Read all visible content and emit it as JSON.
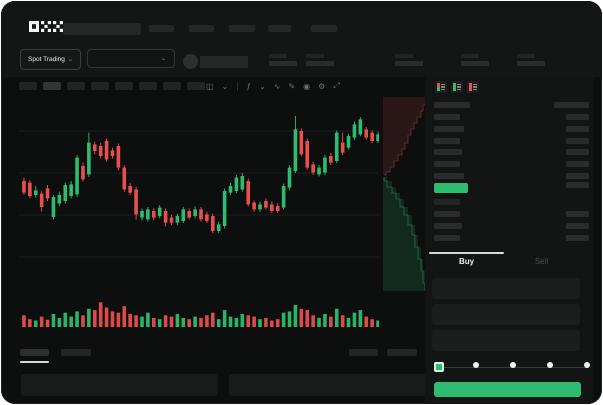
{
  "colors": {
    "green": "#2ebd70",
    "red": "#e8504b",
    "depth_ask_fill": "#2b1717",
    "depth_ask_line": "#6b3431",
    "depth_bid_fill": "#12291d",
    "depth_bid_line": "#2e6b4a",
    "grid": "#1d1e1e",
    "placeholder_bar": "#2b2c2c"
  },
  "header": {
    "logo": "OKX",
    "nav_placeholder_count": 5
  },
  "subheader": {
    "market_selector_label": "Spot Trading",
    "chevron": "⌄",
    "ticker_stat_count": 5
  },
  "chart_toolbar": {
    "interval_placeholder_count": 8,
    "icons": [
      {
        "name": "chart-type-icon",
        "glyph": "◫",
        "interactable": true
      },
      {
        "name": "chevron-down-icon",
        "glyph": "⌄",
        "interactable": true
      },
      {
        "name": "toolbar-divider",
        "glyph": "|",
        "interactable": false
      },
      {
        "name": "indicators-icon",
        "glyph": "ƒ",
        "interactable": true
      },
      {
        "name": "chevron-down-icon",
        "glyph": "⌄",
        "interactable": true
      },
      {
        "name": "compare-icon",
        "glyph": "∿",
        "interactable": true
      },
      {
        "name": "draw-icon",
        "glyph": "✎",
        "interactable": true
      },
      {
        "name": "camera-icon",
        "glyph": "◉",
        "interactable": true
      },
      {
        "name": "settings-icon",
        "glyph": "⚙",
        "interactable": true
      },
      {
        "name": "fullscreen-icon",
        "glyph": "⤢",
        "interactable": true
      }
    ]
  },
  "chart_data": {
    "type": "candlestick",
    "title": "",
    "note": "no axis labels visible; prices normalized to 0-100 scale",
    "ylim": [
      30,
      95
    ],
    "grid": true,
    "candles_ohlc": [
      [
        60,
        61.7,
        53,
        54.2
      ],
      [
        59.2,
        60.3,
        51.3,
        52.5
      ],
      [
        53,
        57.5,
        51.7,
        55.3
      ],
      [
        53.7,
        55,
        44.7,
        47
      ],
      [
        56.3,
        58,
        50,
        51.3
      ],
      [
        42,
        53,
        40.8,
        52
      ],
      [
        48.7,
        54.7,
        47.5,
        53
      ],
      [
        50,
        59.2,
        48.7,
        58
      ],
      [
        52.5,
        60,
        51.3,
        58.3
      ],
      [
        53.3,
        73,
        52,
        71.7
      ],
      [
        67.5,
        69.2,
        59.7,
        60.8
      ],
      [
        63.3,
        84.2,
        62,
        79.2
      ],
      [
        78.3,
        79.7,
        73.3,
        75
      ],
      [
        77.5,
        79,
        71.3,
        72.5
      ],
      [
        80,
        81.3,
        69.7,
        70.8
      ],
      [
        75.3,
        76.7,
        71.3,
        72.5
      ],
      [
        77.5,
        78.7,
        65.3,
        66.7
      ],
      [
        66.7,
        68,
        54.7,
        55.8
      ],
      [
        57.5,
        59,
        53,
        54.2
      ],
      [
        55.8,
        57,
        40.7,
        43.3
      ],
      [
        41.7,
        46.3,
        40.3,
        45
      ],
      [
        40.8,
        47,
        39.7,
        45.8
      ],
      [
        45,
        46.3,
        40.3,
        41.7
      ],
      [
        42.5,
        48,
        41.3,
        46.7
      ],
      [
        45,
        46.3,
        37.3,
        39.2
      ],
      [
        41.7,
        43,
        38,
        39.2
      ],
      [
        39.2,
        43.7,
        38,
        42.5
      ],
      [
        40,
        47,
        39,
        45.8
      ],
      [
        45,
        46.3,
        40.7,
        41.7
      ],
      [
        42.5,
        47.3,
        41.3,
        45.8
      ],
      [
        45.8,
        47,
        39.7,
        40.8
      ],
      [
        43.3,
        44.7,
        39,
        40
      ],
      [
        42.5,
        43.7,
        34,
        35
      ],
      [
        35,
        39.7,
        34,
        38.3
      ],
      [
        37.5,
        56.3,
        36.3,
        55
      ],
      [
        54.2,
        59,
        53,
        57.5
      ],
      [
        55,
        63,
        54,
        61.7
      ],
      [
        55.8,
        64,
        54.7,
        62.5
      ],
      [
        60,
        61.3,
        47.3,
        48.3
      ],
      [
        49.2,
        50.3,
        44.7,
        45.8
      ],
      [
        45.8,
        49.7,
        44.7,
        48.3
      ],
      [
        50,
        51.3,
        45.7,
        46.7
      ],
      [
        48.3,
        49.7,
        44,
        45
      ],
      [
        47.5,
        49,
        44,
        45
      ],
      [
        46.7,
        58.7,
        45.7,
        57.5
      ],
      [
        56.7,
        68,
        55.7,
        66.7
      ],
      [
        65,
        92.5,
        64,
        85.8
      ],
      [
        85,
        86.3,
        72.3,
        73.3
      ],
      [
        80,
        81.3,
        65.7,
        66.7
      ],
      [
        68.3,
        69.7,
        63,
        64.2
      ],
      [
        63.3,
        68,
        62.3,
        66.7
      ],
      [
        64.2,
        73,
        63,
        71.7
      ],
      [
        72.5,
        74,
        68,
        69.2
      ],
      [
        70,
        85.3,
        69,
        84.2
      ],
      [
        79.2,
        84.2,
        73,
        74.2
      ],
      [
        76.7,
        83.7,
        75.7,
        82.5
      ],
      [
        81.7,
        89.7,
        80.7,
        88.3
      ],
      [
        83.3,
        92,
        82.3,
        90.8
      ],
      [
        85.8,
        87,
        80.7,
        81.7
      ],
      [
        84.2,
        85.3,
        79,
        80
      ],
      [
        80,
        84.7,
        79,
        83.3
      ]
    ],
    "volume": [
      45,
      30,
      25,
      40,
      28,
      50,
      35,
      55,
      40,
      60,
      45,
      70,
      65,
      95,
      75,
      60,
      55,
      80,
      50,
      45,
      40,
      55,
      35,
      30,
      45,
      40,
      50,
      35,
      30,
      40,
      35,
      45,
      55,
      30,
      65,
      40,
      35,
      50,
      45,
      40,
      30,
      35,
      25,
      30,
      55,
      60,
      85,
      70,
      65,
      45,
      35,
      50,
      40,
      70,
      45,
      35,
      55,
      65,
      40,
      30,
      25
    ],
    "depth": {
      "asks_steps": [
        [
          0,
          43
        ],
        [
          8,
          40
        ],
        [
          14,
          38
        ],
        [
          20,
          34
        ],
        [
          26,
          31
        ],
        [
          32,
          28
        ],
        [
          38,
          25
        ],
        [
          46,
          22
        ],
        [
          52,
          19
        ],
        [
          58,
          15
        ],
        [
          64,
          11
        ],
        [
          70,
          7
        ],
        [
          75,
          3
        ],
        [
          78,
          1
        ]
      ],
      "bids_steps": [
        [
          80,
          1
        ],
        [
          84,
          4
        ],
        [
          90,
          9
        ],
        [
          96,
          13
        ],
        [
          102,
          17
        ],
        [
          110,
          21
        ],
        [
          118,
          25
        ],
        [
          128,
          29
        ],
        [
          138,
          32
        ],
        [
          150,
          35
        ],
        [
          162,
          38
        ],
        [
          174,
          40
        ],
        [
          186,
          42
        ],
        [
          194,
          43
        ]
      ]
    }
  },
  "orderbook": {
    "view_icons": [
      {
        "name": "book-view-both-icon",
        "top": "red",
        "bottom": "green"
      },
      {
        "name": "book-view-bids-icon",
        "top": "green",
        "bottom": "green"
      },
      {
        "name": "book-view-asks-icon",
        "top": "red",
        "bottom": "red"
      }
    ],
    "header_row": {
      "left_w": 36,
      "right_w": 35
    },
    "ask_rows": [
      {
        "left_w": 26,
        "right_w": 23
      },
      {
        "left_w": 30,
        "right_w": 23
      },
      {
        "left_w": 26,
        "right_w": 23
      },
      {
        "left_w": 28,
        "right_w": 23
      },
      {
        "left_w": 26,
        "right_w": 23
      },
      {
        "left_w": 30,
        "right_w": 23
      }
    ],
    "last_price_highlight": {
      "color": "green",
      "right_w": 23
    },
    "bid_rows": [
      {
        "left_w": 26,
        "right_w": 0,
        "dim": true
      },
      {
        "left_w": 26,
        "right_w": 23
      },
      {
        "left_w": 28,
        "right_w": 23
      },
      {
        "left_w": 26,
        "right_w": 23
      }
    ]
  },
  "trade_panel": {
    "tabs": [
      {
        "label": "Buy",
        "active": true
      },
      {
        "label": "Sell",
        "active": false
      }
    ],
    "field_count": 3,
    "slider": {
      "value_index": 0,
      "stop_count": 5
    },
    "submit_label": ""
  },
  "bottom_bar": {
    "left_tab_count": 2,
    "right_tab_count": 2,
    "panel_count": 2
  }
}
